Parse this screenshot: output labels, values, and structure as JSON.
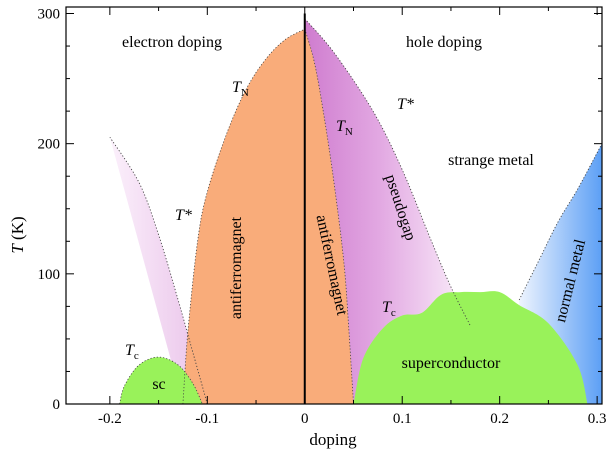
{
  "chart_data": {
    "type": "phase-diagram",
    "title": "",
    "xlabel": "doping",
    "ylabel": "T (K)",
    "ylabel_italic_part": "T",
    "ylabel_rest": " (K)",
    "xlim": [
      -0.245,
      0.305
    ],
    "ylim": [
      0,
      305
    ],
    "x_ticks": [
      -0.2,
      -0.1,
      0,
      0.1,
      0.2,
      0.3
    ],
    "x_tick_labels": [
      "-0.2",
      "-0.1",
      "0",
      "0.1",
      "0.2",
      "0.3"
    ],
    "y_ticks": [
      0,
      100,
      200,
      300
    ],
    "y_tick_labels": [
      "0",
      "100",
      "200",
      "300"
    ],
    "y_minor_ticks": [
      25,
      50,
      75,
      125,
      150,
      175,
      225,
      250,
      275
    ],
    "x_minor_ticks": [
      -0.15,
      -0.05,
      0.05,
      0.15,
      0.25
    ],
    "colors": {
      "antiferromagnet": "#f9ac7a",
      "superconductor": "#99f25a",
      "pseudogap": "#dda0dd",
      "pseudogap_edge": "#f4e2f4",
      "normal_metal": "#6aa7f5",
      "normal_metal_edge": "#e6f0fd"
    },
    "series": [
      {
        "name": "T_N electron",
        "x": [
          -0.125,
          -0.12,
          -0.11,
          -0.1,
          -0.08,
          -0.06,
          -0.04,
          -0.02,
          0
        ],
        "y": [
          0,
          55,
          125,
          163,
          208,
          242,
          265,
          280,
          288
        ]
      },
      {
        "name": "T_N hole",
        "x": [
          0,
          0.01,
          0.02,
          0.03,
          0.04,
          0.045,
          0.05
        ],
        "y": [
          288,
          262,
          220,
          170,
          110,
          60,
          0
        ]
      },
      {
        "name": "T* electron",
        "x": [
          -0.1,
          -0.115,
          -0.13,
          -0.15,
          -0.17,
          -0.2
        ],
        "y": [
          0,
          40,
          80,
          130,
          170,
          205
        ]
      },
      {
        "name": "T* hole",
        "x": [
          0,
          0.03,
          0.07,
          0.1,
          0.13,
          0.15,
          0.17
        ],
        "y": [
          296,
          270,
          225,
          180,
          125,
          90,
          60
        ]
      },
      {
        "name": "Tc electron dome",
        "x": [
          -0.19,
          -0.185,
          -0.17,
          -0.15,
          -0.13,
          -0.115,
          -0.105
        ],
        "y": [
          0,
          14,
          30,
          36,
          30,
          16,
          0
        ]
      },
      {
        "name": "Tc hole dome",
        "x": [
          0.05,
          0.06,
          0.08,
          0.1,
          0.12,
          0.14,
          0.16,
          0.18,
          0.2,
          0.22,
          0.25,
          0.28,
          0.29
        ],
        "y": [
          0,
          35,
          58,
          68,
          70,
          84,
          86,
          86,
          86,
          76,
          62,
          30,
          0
        ]
      },
      {
        "name": "normal metal boundary",
        "x": [
          0.22,
          0.24,
          0.26,
          0.28,
          0.3,
          0.305
        ],
        "y": [
          80,
          110,
          140,
          165,
          193,
          200
        ]
      }
    ],
    "annotations": {
      "electron_doping": "electron doping",
      "hole_doping": "hole doping",
      "strange_metal": "strange metal",
      "antiferromagnet_left": "antiferromagnet",
      "antiferromagnet_right": "antiferromagnet",
      "pseudogap": "pseudogap",
      "normal_metal": "normal metal",
      "superconductor": "superconductor",
      "sc": "sc",
      "tn_left": "T",
      "tn_left_sub": "N",
      "tn_right": "T",
      "tn_right_sub": "N",
      "tstar_left": "T*",
      "tstar_right": "T*",
      "tc_left": "T",
      "tc_left_sub": "c",
      "tc_right": "T",
      "tc_right_sub": "c"
    }
  }
}
